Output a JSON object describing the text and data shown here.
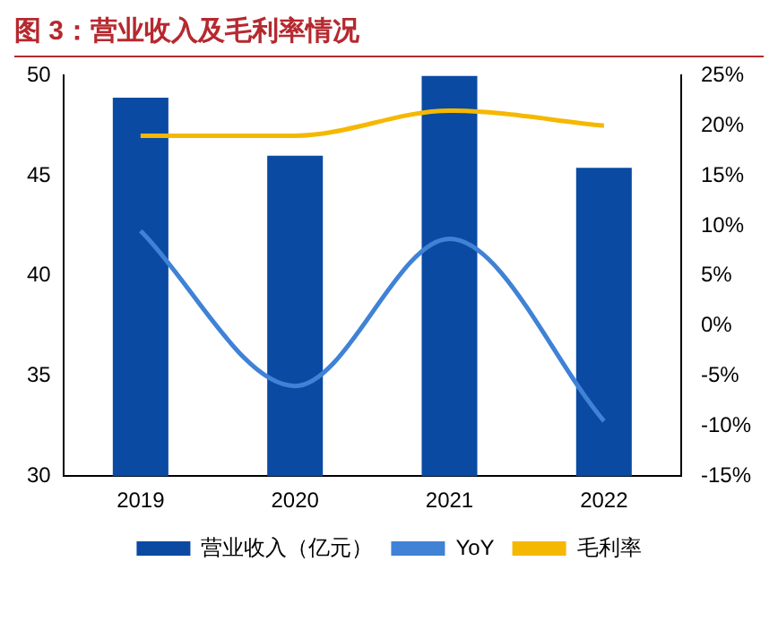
{
  "chart_data": {
    "type": "bar",
    "title": "图 3：营业收入及毛利率情况",
    "categories": [
      "2019",
      "2020",
      "2021",
      "2022"
    ],
    "series": [
      {
        "name": "营业收入（亿元）",
        "color": "#0b4aa2",
        "values": [
          48.9,
          46.0,
          50.0,
          45.4
        ]
      },
      {
        "name": "YoY",
        "type": "line",
        "axis": "y2",
        "color": "#3f82d6",
        "values": [
          9.5,
          -6.0,
          8.7,
          -9.5
        ]
      },
      {
        "name": "毛利率",
        "type": "line",
        "axis": "y2",
        "color": "#f5b800",
        "values": [
          19.0,
          19.0,
          21.5,
          20.0
        ]
      }
    ],
    "ylim": [
      30,
      50
    ],
    "yticks": [
      30,
      35,
      40,
      45,
      50
    ],
    "y2lim": [
      -15,
      25
    ],
    "y2ticks": [
      {
        "value": -15,
        "label": "-15%"
      },
      {
        "value": -10,
        "label": "-10%"
      },
      {
        "value": -5,
        "label": "-5%"
      },
      {
        "value": 0,
        "label": "0%"
      },
      {
        "value": 5,
        "label": "5%"
      },
      {
        "value": 10,
        "label": "10%"
      },
      {
        "value": 15,
        "label": "15%"
      },
      {
        "value": 20,
        "label": "20%"
      },
      {
        "value": 25,
        "label": "25%"
      }
    ],
    "grid": false,
    "legend": "bottom",
    "marker": "none"
  }
}
